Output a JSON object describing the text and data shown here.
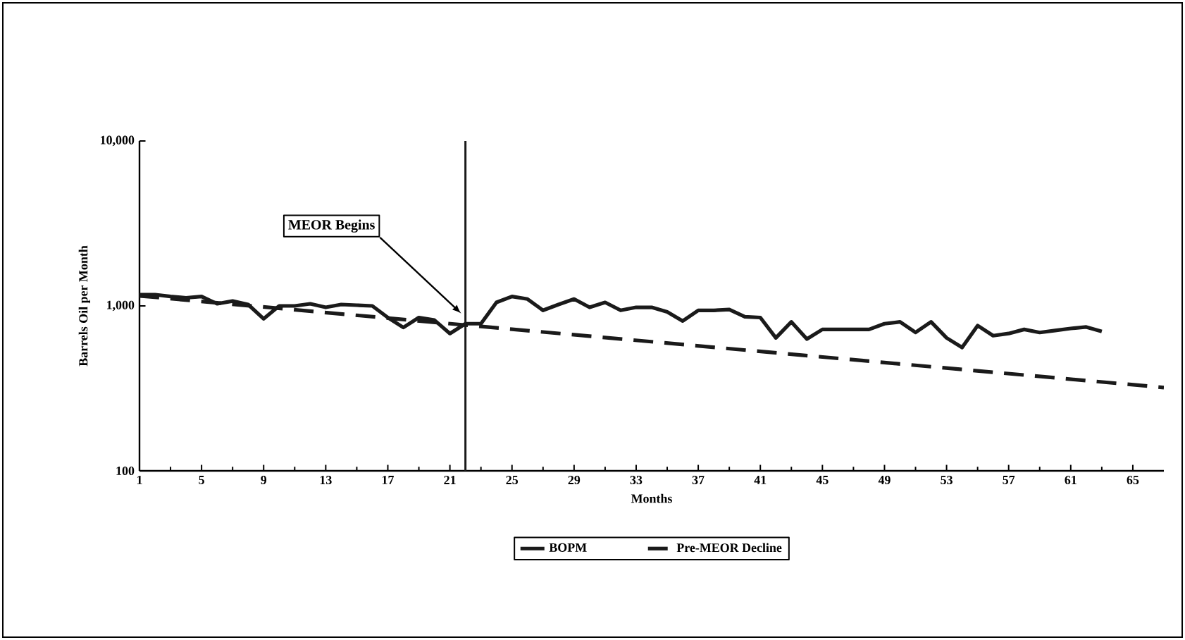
{
  "chart_data": {
    "type": "line",
    "xlabel": "Months",
    "ylabel": "Barrels Oil per Month",
    "xlim": [
      1,
      67
    ],
    "xticks": [
      1,
      5,
      9,
      13,
      17,
      21,
      25,
      29,
      33,
      37,
      41,
      45,
      49,
      53,
      57,
      61,
      65
    ],
    "ylim": [
      100,
      10000
    ],
    "yticks": [
      100,
      {
        "value": 1000,
        "label": "1,000"
      },
      {
        "value": 10000,
        "label": "10,000"
      }
    ],
    "log": "y",
    "legend": "bottom",
    "marker": "none",
    "series": [
      {
        "name": "BOPM",
        "color": "#1a1a1a",
        "line_style": "solid",
        "x": [
          1,
          2,
          3,
          4,
          5,
          6,
          7,
          8,
          9,
          10,
          11,
          12,
          13,
          14,
          15,
          16,
          17,
          18,
          19,
          20,
          21,
          22,
          23,
          24,
          25,
          26,
          27,
          28,
          29,
          30,
          31,
          32,
          33,
          34,
          35,
          36,
          37,
          38,
          39,
          40,
          41,
          42,
          43,
          44,
          45,
          46,
          47,
          48,
          49,
          50,
          51,
          52,
          53,
          54,
          55,
          56,
          57,
          58,
          59,
          60,
          61,
          62,
          63
        ],
        "values": [
          1170,
          1170,
          1140,
          1120,
          1140,
          1030,
          1070,
          1020,
          835,
          1000,
          1000,
          1030,
          980,
          1020,
          1010,
          1000,
          850,
          740,
          850,
          820,
          680,
          780,
          780,
          1050,
          1140,
          1100,
          940,
          1020,
          1100,
          980,
          1050,
          940,
          980,
          980,
          920,
          810,
          940,
          940,
          950,
          860,
          850,
          640,
          800,
          630,
          720,
          720,
          720,
          720,
          780,
          800,
          690,
          800,
          640,
          560,
          760,
          660,
          680,
          720,
          690,
          710,
          730,
          745,
          700
        ]
      },
      {
        "name": "Pre-MEOR Decline",
        "color": "#1a1a1a",
        "line_style": "dashed",
        "x": [
          1,
          67
        ],
        "values": [
          1150,
          320
        ]
      }
    ],
    "ref_lines": [
      {
        "axis": "x",
        "value": 22,
        "color": "#1a1a1a"
      }
    ],
    "annotations": [
      {
        "text": "MEOR Begins",
        "x": 22,
        "y": 900
      }
    ]
  }
}
